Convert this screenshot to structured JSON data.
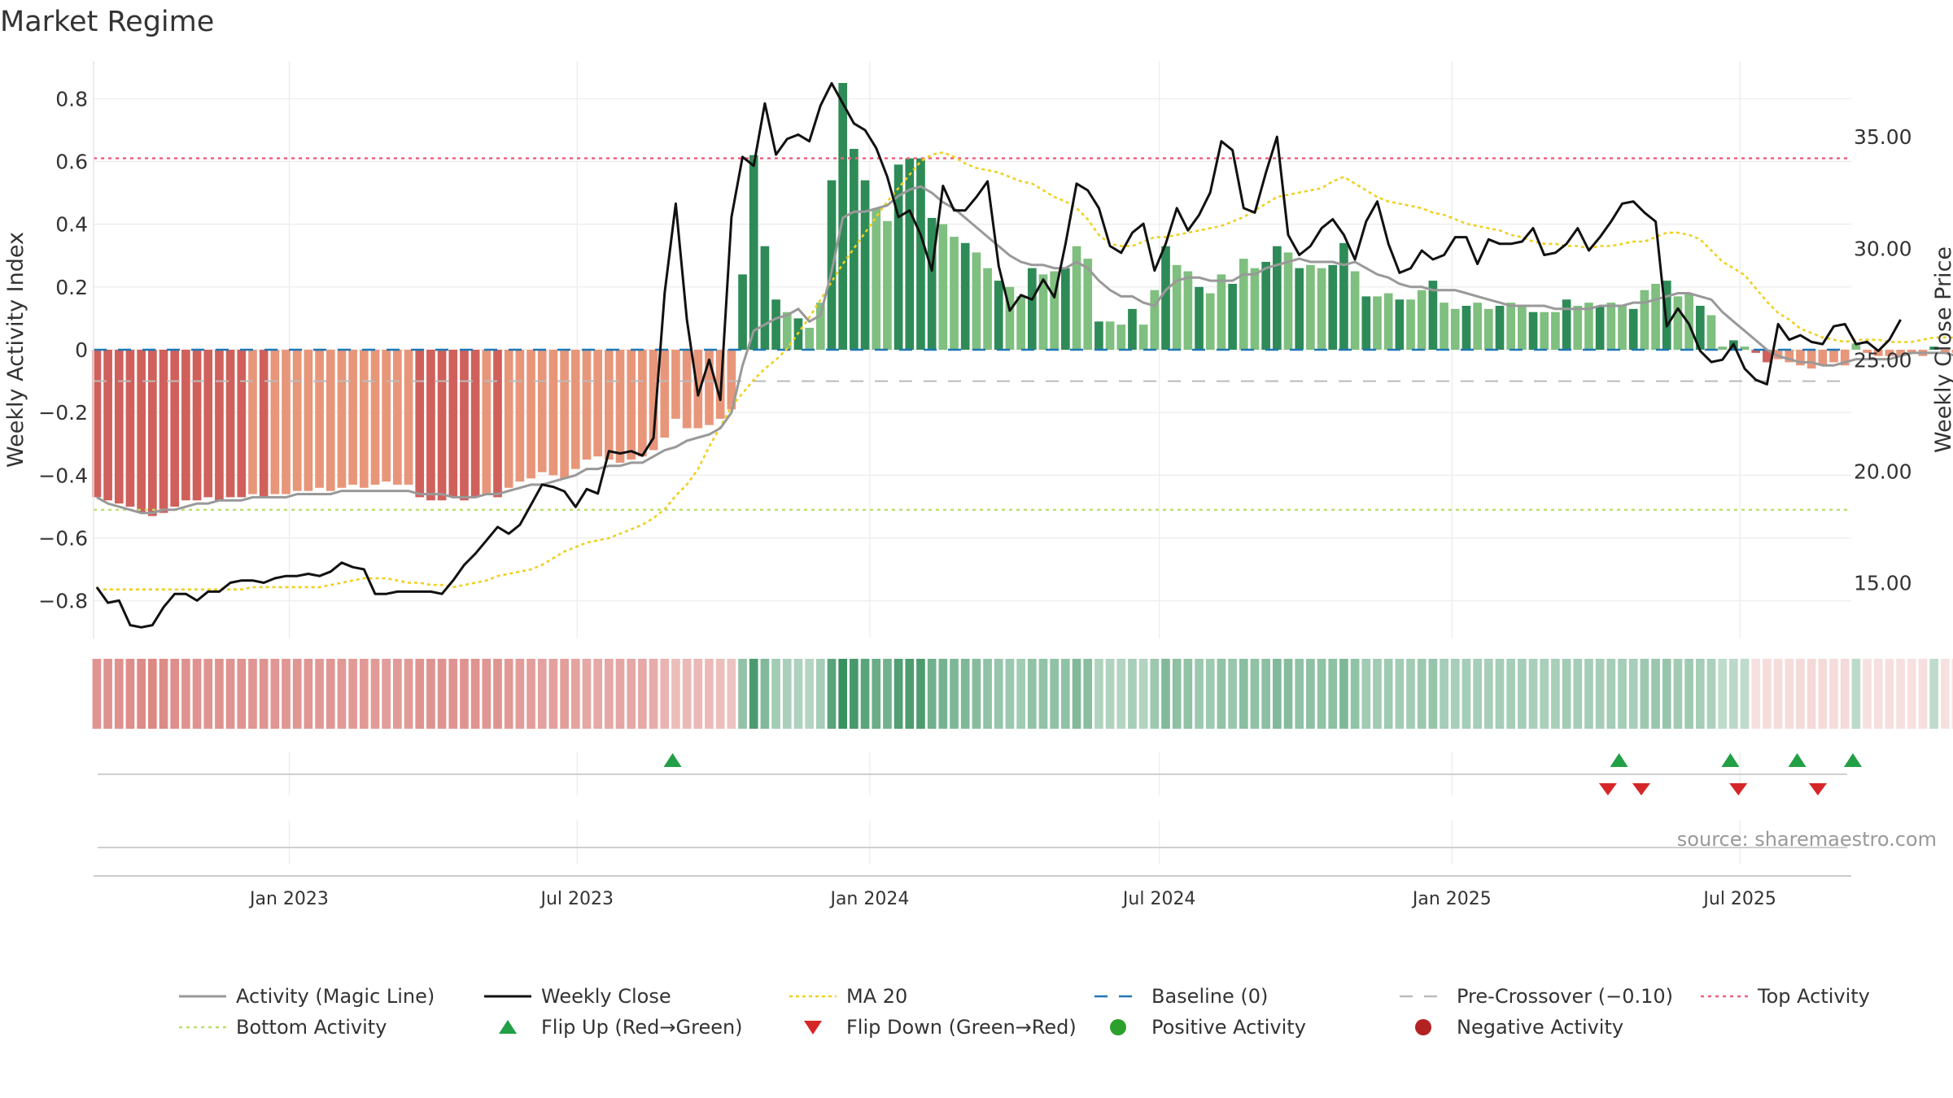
{
  "title": "Market Regime",
  "source": "source: sharemaestro.com",
  "colors": {
    "pos_strong": "#2e8b57",
    "pos_weak": "#7fbf7f",
    "neg_strong": "#d0605b",
    "neg_weak": "#e8967a",
    "close": "#111111",
    "magic": "#999999",
    "ma20": "#f0d020",
    "baseline": "#1f77b4",
    "pre_crossover": "#bbbbbb",
    "top": "#f06080",
    "bottom": "#b8e070",
    "flip_up": "#22a045",
    "flip_down": "#d62728",
    "positive_marker": "#2ca02c",
    "negative_marker": "#b22222"
  },
  "chart_data": {
    "type": "bar",
    "title": "Market Regime",
    "ylabel_left": "Weekly Activity Index",
    "ylabel_right": "Weekly Close Price",
    "ylim_left": [
      -0.92,
      0.92
    ],
    "ylim_right": [
      12.5,
      38.4
    ],
    "yticks_left": [
      "0.8",
      "0.6",
      "0.4",
      "0.2",
      "0",
      "−0.2",
      "−0.4",
      "−0.6",
      "−0.8"
    ],
    "yticks_left_values": [
      0.8,
      0.6,
      0.4,
      0.2,
      0,
      -0.2,
      -0.4,
      -0.6,
      -0.8
    ],
    "yticks_right": [
      "35.00",
      "30.00",
      "25.00",
      "20.00",
      "15.00"
    ],
    "yticks_right_values": [
      35,
      30,
      25,
      20,
      15
    ],
    "xlim": [
      "2022-08-31",
      "2025-09-09"
    ],
    "xticks": [
      {
        "date": "2023-01-01",
        "label": "Jan 2023"
      },
      {
        "date": "2023-07-01",
        "label": "Jul 2023"
      },
      {
        "date": "2024-01-01",
        "label": "Jan 2024"
      },
      {
        "date": "2024-07-01",
        "label": "Jul 2024"
      },
      {
        "date": "2025-01-01",
        "label": "Jan 2025"
      },
      {
        "date": "2025-07-01",
        "label": "Jul 2025"
      }
    ],
    "first_week": "2022-09-02",
    "week_step_days": 7,
    "activity": [
      -0.47,
      -0.48,
      -0.49,
      -0.5,
      -0.52,
      -0.53,
      -0.52,
      -0.5,
      -0.48,
      -0.48,
      -0.47,
      -0.48,
      -0.47,
      -0.47,
      -0.46,
      -0.47,
      -0.46,
      -0.46,
      -0.45,
      -0.45,
      -0.44,
      -0.45,
      -0.44,
      -0.43,
      -0.44,
      -0.43,
      -0.42,
      -0.43,
      -0.43,
      -0.47,
      -0.48,
      -0.48,
      -0.47,
      -0.48,
      -0.47,
      -0.46,
      -0.47,
      -0.44,
      -0.42,
      -0.41,
      -0.39,
      -0.4,
      -0.41,
      -0.38,
      -0.35,
      -0.34,
      -0.35,
      -0.36,
      -0.35,
      -0.34,
      -0.32,
      -0.28,
      -0.22,
      -0.25,
      -0.25,
      -0.24,
      -0.22,
      -0.19,
      0.24,
      0.62,
      0.33,
      0.16,
      0.12,
      0.1,
      0.07,
      0.15,
      0.54,
      0.85,
      0.64,
      0.54,
      0.45,
      0.41,
      0.59,
      0.61,
      0.61,
      0.42,
      0.4,
      0.36,
      0.34,
      0.31,
      0.26,
      0.22,
      0.2,
      0.17,
      0.26,
      0.24,
      0.25,
      0.26,
      0.33,
      0.29,
      0.09,
      0.09,
      0.08,
      0.13,
      0.08,
      0.19,
      0.33,
      0.27,
      0.25,
      0.2,
      0.18,
      0.24,
      0.21,
      0.29,
      0.26,
      0.28,
      0.33,
      0.31,
      0.26,
      0.27,
      0.26,
      0.27,
      0.34,
      0.25,
      0.17,
      0.17,
      0.18,
      0.16,
      0.16,
      0.19,
      0.22,
      0.15,
      0.13,
      0.14,
      0.15,
      0.13,
      0.14,
      0.15,
      0.14,
      0.12,
      0.12,
      0.12,
      0.16,
      0.14,
      0.15,
      0.14,
      0.15,
      0.14,
      0.13,
      0.19,
      0.21,
      0.22,
      0.17,
      0.18,
      0.14,
      0.11,
      0.01,
      0.03,
      0.01,
      -0.01,
      -0.04,
      -0.03,
      -0.04,
      -0.05,
      -0.06,
      -0.05,
      -0.04,
      -0.05,
      0.02,
      -0.01,
      -0.02,
      -0.02,
      -0.02,
      -0.01,
      -0.02,
      0.01,
      -0.01,
      -0.01,
      -0.01,
      -0.02,
      -0.02,
      -0.02,
      -0.01
    ],
    "close": [
      14.8,
      14.1,
      14.2,
      13.1,
      13.0,
      13.1,
      13.9,
      14.5,
      14.5,
      14.2,
      14.6,
      14.6,
      15.0,
      15.1,
      15.1,
      15.0,
      15.2,
      15.3,
      15.3,
      15.4,
      15.3,
      15.5,
      15.9,
      15.7,
      15.6,
      14.5,
      14.5,
      14.6,
      14.6,
      14.6,
      14.6,
      14.5,
      15.1,
      15.8,
      16.3,
      16.9,
      17.5,
      17.2,
      17.6,
      18.5,
      19.4,
      19.3,
      19.1,
      18.4,
      19.2,
      19.0,
      20.9,
      20.8,
      20.9,
      20.7,
      21.5,
      28.0,
      32.0,
      26.8,
      23.4,
      25.0,
      23.2,
      31.4,
      34.1,
      33.7,
      36.5,
      34.2,
      34.9,
      35.1,
      34.8,
      36.4,
      37.4,
      36.5,
      35.6,
      35.3,
      34.5,
      33.2,
      31.4,
      31.7,
      30.6,
      29.0,
      32.8,
      31.7,
      31.7,
      32.3,
      33.0,
      29.2,
      27.2,
      27.9,
      27.7,
      28.6,
      27.8,
      30.2,
      32.9,
      32.6,
      31.8,
      30.1,
      29.8,
      30.7,
      31.1,
      29.0,
      30.2,
      31.8,
      30.8,
      31.5,
      32.5,
      34.8,
      34.4,
      31.8,
      31.6,
      33.4,
      35.0,
      30.6,
      29.7,
      30.1,
      30.9,
      31.3,
      30.6,
      29.5,
      31.2,
      32.1,
      30.2,
      28.9,
      29.1,
      29.9,
      29.5,
      29.7,
      30.5,
      30.5,
      29.3,
      30.4,
      30.2,
      30.2,
      30.3,
      30.9,
      29.7,
      29.8,
      30.2,
      30.9,
      29.9,
      30.5,
      31.2,
      32.0,
      32.1,
      31.6,
      31.2,
      26.5,
      27.3,
      26.6,
      25.4,
      24.9,
      25.0,
      25.7,
      24.6,
      24.1,
      23.9,
      26.6,
      25.9,
      26.1,
      25.8,
      25.7,
      26.5,
      26.6,
      25.7,
      25.8,
      25.4,
      25.9,
      26.8
    ],
    "magic": [
      -0.47,
      -0.49,
      -0.5,
      -0.51,
      -0.52,
      -0.52,
      -0.51,
      -0.51,
      -0.5,
      -0.49,
      -0.49,
      -0.48,
      -0.48,
      -0.48,
      -0.47,
      -0.47,
      -0.47,
      -0.47,
      -0.46,
      -0.46,
      -0.46,
      -0.46,
      -0.45,
      -0.45,
      -0.45,
      -0.45,
      -0.45,
      -0.45,
      -0.45,
      -0.46,
      -0.46,
      -0.46,
      -0.47,
      -0.47,
      -0.47,
      -0.46,
      -0.46,
      -0.45,
      -0.44,
      -0.43,
      -0.43,
      -0.42,
      -0.41,
      -0.4,
      -0.38,
      -0.38,
      -0.37,
      -0.37,
      -0.36,
      -0.36,
      -0.34,
      -0.32,
      -0.31,
      -0.29,
      -0.28,
      -0.27,
      -0.25,
      -0.2,
      -0.05,
      0.06,
      0.08,
      0.1,
      0.11,
      0.13,
      0.09,
      0.11,
      0.25,
      0.42,
      0.44,
      0.44,
      0.45,
      0.46,
      0.49,
      0.51,
      0.52,
      0.5,
      0.47,
      0.45,
      0.42,
      0.39,
      0.36,
      0.33,
      0.3,
      0.28,
      0.27,
      0.27,
      0.26,
      0.26,
      0.28,
      0.26,
      0.22,
      0.19,
      0.17,
      0.17,
      0.15,
      0.14,
      0.19,
      0.22,
      0.23,
      0.23,
      0.22,
      0.22,
      0.22,
      0.24,
      0.24,
      0.26,
      0.27,
      0.28,
      0.29,
      0.28,
      0.28,
      0.28,
      0.27,
      0.28,
      0.26,
      0.24,
      0.23,
      0.21,
      0.2,
      0.2,
      0.19,
      0.19,
      0.19,
      0.18,
      0.17,
      0.16,
      0.15,
      0.14,
      0.14,
      0.14,
      0.14,
      0.13,
      0.13,
      0.13,
      0.13,
      0.14,
      0.14,
      0.14,
      0.15,
      0.15,
      0.16,
      0.17,
      0.18,
      0.18,
      0.17,
      0.16,
      0.12,
      0.09,
      0.06,
      0.03,
      0.0,
      -0.02,
      -0.03,
      -0.04,
      -0.04,
      -0.05,
      -0.05,
      -0.04,
      -0.03,
      -0.03,
      -0.03,
      -0.03,
      -0.02,
      -0.01,
      -0.01,
      -0.01,
      -0.01,
      -0.02,
      -0.02,
      -0.02,
      -0.01
    ],
    "ma20": [
      14.7,
      14.7,
      14.7,
      14.7,
      14.7,
      14.7,
      14.7,
      14.7,
      14.7,
      14.7,
      14.7,
      14.7,
      14.7,
      14.7,
      14.8,
      14.8,
      14.8,
      14.8,
      14.8,
      14.8,
      14.8,
      14.9,
      15.0,
      15.1,
      15.2,
      15.2,
      15.2,
      15.1,
      15.0,
      15.0,
      14.9,
      14.9,
      14.8,
      14.9,
      15.0,
      15.1,
      15.3,
      15.4,
      15.5,
      15.6,
      15.8,
      16.1,
      16.4,
      16.6,
      16.8,
      16.9,
      17.0,
      17.2,
      17.4,
      17.6,
      17.9,
      18.3,
      18.9,
      19.4,
      20.1,
      21.1,
      22.0,
      22.9,
      23.5,
      24.1,
      24.6,
      25.0,
      25.5,
      26.2,
      26.9,
      27.7,
      28.5,
      29.3,
      30.0,
      30.7,
      31.4,
      32.1,
      32.7,
      33.3,
      33.9,
      34.2,
      34.3,
      34.1,
      33.8,
      33.6,
      33.5,
      33.4,
      33.2,
      33.0,
      32.9,
      32.6,
      32.3,
      32.1,
      31.8,
      31.3,
      30.6,
      30.2,
      30.1,
      30.1,
      30.3,
      30.5,
      30.5,
      30.6,
      30.7,
      30.8,
      30.9,
      31.0,
      31.2,
      31.4,
      31.7,
      32.0,
      32.3,
      32.4,
      32.5,
      32.6,
      32.7,
      33.0,
      33.2,
      32.9,
      32.6,
      32.3,
      32.1,
      32.0,
      31.9,
      31.8,
      31.6,
      31.5,
      31.3,
      31.1,
      31.0,
      30.9,
      30.8,
      30.6,
      30.5,
      30.3,
      30.2,
      30.2,
      30.1,
      30.1,
      30.0,
      30.1,
      30.1,
      30.2,
      30.3,
      30.3,
      30.5,
      30.7,
      30.7,
      30.6,
      30.4,
      29.9,
      29.4,
      29.1,
      28.8,
      28.2,
      27.6,
      27.1,
      26.8,
      26.4,
      26.2,
      26.0,
      25.9,
      25.8,
      25.9,
      25.9,
      25.9,
      25.8,
      25.8,
      25.8,
      25.9,
      26.0,
      26.0,
      26.0,
      26.1
    ],
    "baseline": 0,
    "pre_crossover": -0.1,
    "top_activity": 0.61,
    "bottom_activity": -0.51,
    "flip_up_dates": [
      "2023-08-30",
      "2025-04-16",
      "2025-06-25",
      "2025-08-06",
      "2025-09-10"
    ],
    "flip_down_dates": [
      "2025-04-09",
      "2025-04-30",
      "2025-06-30",
      "2025-08-19"
    ],
    "legend_position": "bottom",
    "legend": [
      {
        "key": "magic",
        "label": "Activity (Magic Line)"
      },
      {
        "key": "close",
        "label": "Weekly Close"
      },
      {
        "key": "ma20",
        "label": "MA 20"
      },
      {
        "key": "baseline",
        "label": "Baseline (0)"
      },
      {
        "key": "pre",
        "label": "Pre-Crossover (−0.10)"
      },
      {
        "key": "top",
        "label": "Top Activity"
      },
      {
        "key": "bottom",
        "label": "Bottom Activity"
      },
      {
        "key": "flipup",
        "label": "Flip Up (Red→Green)"
      },
      {
        "key": "flipdown",
        "label": "Flip Down (Green→Red)"
      },
      {
        "key": "posact",
        "label": "Positive Activity"
      },
      {
        "key": "negact",
        "label": "Negative Activity"
      }
    ]
  }
}
